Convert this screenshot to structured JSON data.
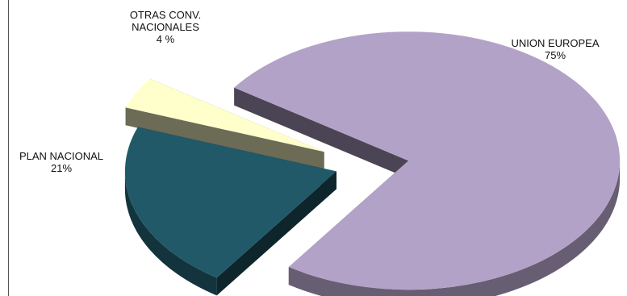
{
  "chart_data": {
    "type": "pie",
    "style": "3d-exploded",
    "slices": [
      {
        "label_lines": [
          "UNION  EUROPEA"
        ],
        "pct_text": "75%",
        "value": 75,
        "color": "#B3A2C7"
      },
      {
        "label_lines": [
          "PLAN NACIONAL"
        ],
        "pct_text": "21%",
        "value": 21,
        "color": "#215968"
      },
      {
        "label_lines": [
          "OTRAS  CONV.",
          "NACIONALES"
        ],
        "pct_text": "4 %",
        "value": 4,
        "color": "#FFFFCC"
      }
    ]
  }
}
